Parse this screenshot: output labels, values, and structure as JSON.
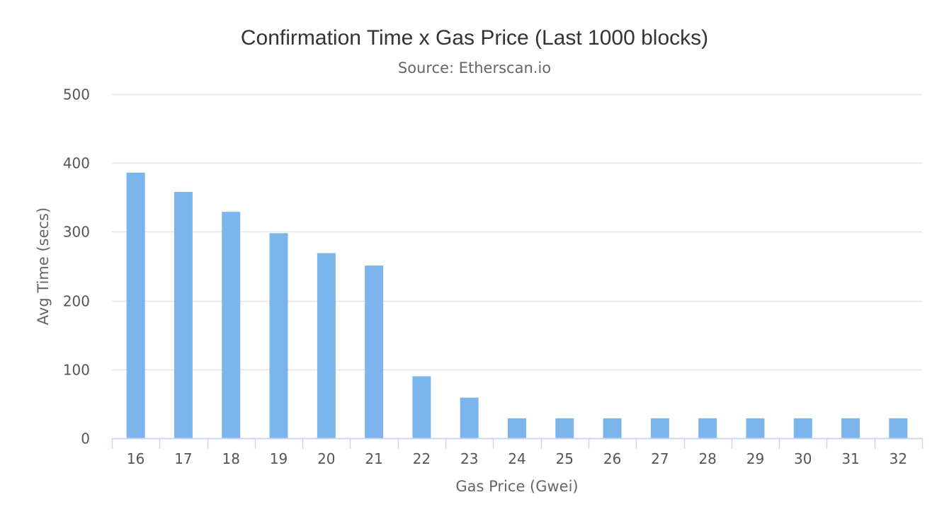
{
  "chart_data": {
    "type": "bar",
    "title": "Confirmation Time x Gas Price (Last 1000 blocks)",
    "subtitle": "Source: Etherscan.io",
    "xlabel": "Gas Price (Gwei)",
    "ylabel": "Avg Time (secs)",
    "categories": [
      "16",
      "17",
      "18",
      "19",
      "20",
      "21",
      "22",
      "23",
      "24",
      "25",
      "26",
      "27",
      "28",
      "29",
      "30",
      "31",
      "32"
    ],
    "values": [
      386,
      358,
      329,
      298,
      269,
      251,
      90,
      59,
      29,
      29,
      29,
      29,
      29,
      29,
      29,
      29,
      29
    ],
    "ylim": [
      0,
      500
    ],
    "yticks": [
      0,
      100,
      200,
      300,
      400,
      500
    ],
    "grid": true,
    "legend": "none",
    "colors": {
      "bar": "#7cb5ec",
      "grid": "#e6e6e6",
      "axis": "#ccd6eb"
    }
  }
}
